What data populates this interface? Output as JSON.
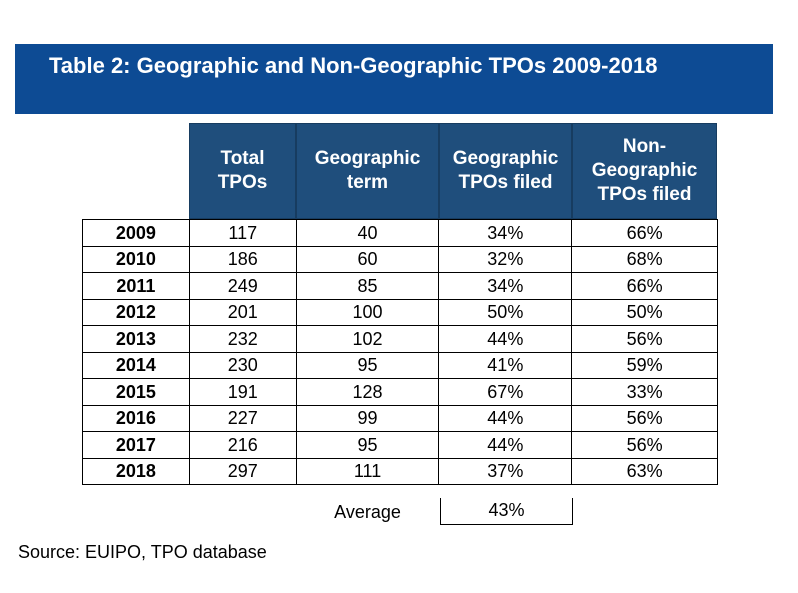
{
  "title": "Table 2: Geographic and Non-Geographic TPOs 2009-2018",
  "headers": {
    "total": "Total\nTPOs",
    "geo_term": "Geographic\nterm",
    "geo_filed": "Geographic\nTPOs filed",
    "nongeo_filed": "Non-\nGeographic\nTPOs filed"
  },
  "rows": [
    {
      "year": "2009",
      "total": "117",
      "geo_term": "40",
      "geo_pct": "34%",
      "nongeo_pct": "66%"
    },
    {
      "year": "2010",
      "total": "186",
      "geo_term": "60",
      "geo_pct": "32%",
      "nongeo_pct": "68%"
    },
    {
      "year": "2011",
      "total": "249",
      "geo_term": "85",
      "geo_pct": "34%",
      "nongeo_pct": "66%"
    },
    {
      "year": "2012",
      "total": "201",
      "geo_term": "100",
      "geo_pct": "50%",
      "nongeo_pct": "50%"
    },
    {
      "year": "2013",
      "total": "232",
      "geo_term": "102",
      "geo_pct": "44%",
      "nongeo_pct": "56%"
    },
    {
      "year": "2014",
      "total": "230",
      "geo_term": "95",
      "geo_pct": "41%",
      "nongeo_pct": "59%"
    },
    {
      "year": "2015",
      "total": "191",
      "geo_term": "128",
      "geo_pct": "67%",
      "nongeo_pct": "33%"
    },
    {
      "year": "2016",
      "total": "227",
      "geo_term": "99",
      "geo_pct": "44%",
      "nongeo_pct": "56%"
    },
    {
      "year": "2017",
      "total": "216",
      "geo_term": "95",
      "geo_pct": "44%",
      "nongeo_pct": "56%"
    },
    {
      "year": "2018",
      "total": "297",
      "geo_term": "111",
      "geo_pct": "37%",
      "nongeo_pct": "63%"
    }
  ],
  "average": {
    "label": "Average",
    "value": "43%"
  },
  "source": "Source: EUIPO, TPO database",
  "colors": {
    "title_bg": "#0d4b94",
    "header_bg": "#1f4e7c"
  }
}
